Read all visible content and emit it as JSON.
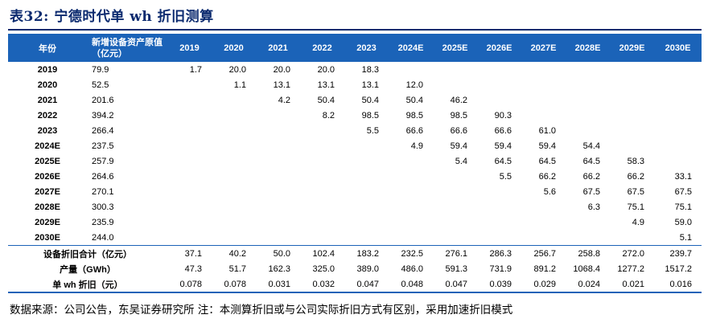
{
  "title": "表32:  宁德时代单 wh 折旧测算",
  "table": {
    "headers": [
      "年份",
      "新增设备资产原值（亿元）",
      "2019",
      "2020",
      "2021",
      "2022",
      "2023",
      "2024E",
      "2025E",
      "2026E",
      "2027E",
      "2028E",
      "2029E",
      "2030E"
    ],
    "rows": [
      [
        "2019",
        "79.9",
        "1.7",
        "20.0",
        "20.0",
        "20.0",
        "18.3",
        "",
        "",
        "",
        "",
        "",
        "",
        ""
      ],
      [
        "2020",
        "52.5",
        "",
        "1.1",
        "13.1",
        "13.1",
        "13.1",
        "12.0",
        "",
        "",
        "",
        "",
        "",
        ""
      ],
      [
        "2021",
        "201.6",
        "",
        "",
        "4.2",
        "50.4",
        "50.4",
        "50.4",
        "46.2",
        "",
        "",
        "",
        "",
        ""
      ],
      [
        "2022",
        "394.2",
        "",
        "",
        "",
        "8.2",
        "98.5",
        "98.5",
        "98.5",
        "90.3",
        "",
        "",
        "",
        ""
      ],
      [
        "2023",
        "266.4",
        "",
        "",
        "",
        "",
        "5.5",
        "66.6",
        "66.6",
        "66.6",
        "61.0",
        "",
        "",
        ""
      ],
      [
        "2024E",
        "237.5",
        "",
        "",
        "",
        "",
        "",
        "4.9",
        "59.4",
        "59.4",
        "59.4",
        "54.4",
        "",
        ""
      ],
      [
        "2025E",
        "257.9",
        "",
        "",
        "",
        "",
        "",
        "",
        "5.4",
        "64.5",
        "64.5",
        "64.5",
        "58.3",
        ""
      ],
      [
        "2026E",
        "264.6",
        "",
        "",
        "",
        "",
        "",
        "",
        "",
        "5.5",
        "66.2",
        "66.2",
        "66.2",
        "33.1"
      ],
      [
        "2027E",
        "270.1",
        "",
        "",
        "",
        "",
        "",
        "",
        "",
        "",
        "5.6",
        "67.5",
        "67.5",
        "67.5"
      ],
      [
        "2028E",
        "300.3",
        "",
        "",
        "",
        "",
        "",
        "",
        "",
        "",
        "",
        "6.3",
        "75.1",
        "75.1"
      ],
      [
        "2029E",
        "235.9",
        "",
        "",
        "",
        "",
        "",
        "",
        "",
        "",
        "",
        "",
        "4.9",
        "59.0"
      ],
      [
        "2030E",
        "244.0",
        "",
        "",
        "",
        "",
        "",
        "",
        "",
        "",
        "",
        "",
        "",
        "5.1"
      ]
    ],
    "totals": [
      [
        "设备折旧合计（亿元）",
        "37.1",
        "40.2",
        "50.0",
        "102.4",
        "183.2",
        "232.5",
        "276.1",
        "286.3",
        "256.7",
        "258.8",
        "272.0",
        "239.7"
      ],
      [
        "产量（GWh）",
        "47.3",
        "51.7",
        "162.3",
        "325.0",
        "389.0",
        "486.0",
        "591.3",
        "731.9",
        "891.2",
        "1068.4",
        "1277.2",
        "1517.2"
      ],
      [
        "单 wh 折旧（元）",
        "0.078",
        "0.078",
        "0.031",
        "0.032",
        "0.047",
        "0.048",
        "0.047",
        "0.039",
        "0.029",
        "0.024",
        "0.021",
        "0.016"
      ]
    ]
  },
  "footnote": "数据来源：公司公告，东吴证券研究所  注：本测算折旧或与公司实际折旧方式有区别，采用加速折旧模式"
}
